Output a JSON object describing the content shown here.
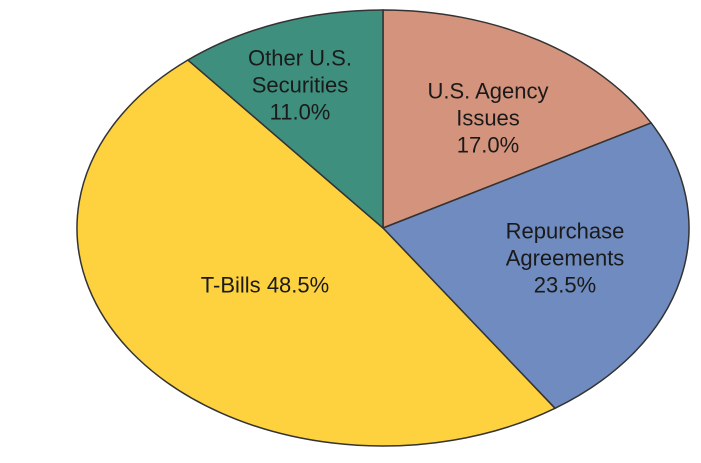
{
  "chart_data": {
    "type": "pie",
    "categories": [
      "U.S. Agency Issues",
      "Repurchase Agreements",
      "T-Bills",
      "Other U.S. Securities"
    ],
    "values": [
      17.0,
      23.5,
      48.5,
      11.0
    ],
    "value_labels": [
      "17.0%",
      "23.5%",
      "48.5%",
      "11.0%"
    ],
    "colors": [
      "#d4937c",
      "#6f8bbf",
      "#fdd23e",
      "#3f8f7f"
    ]
  }
}
